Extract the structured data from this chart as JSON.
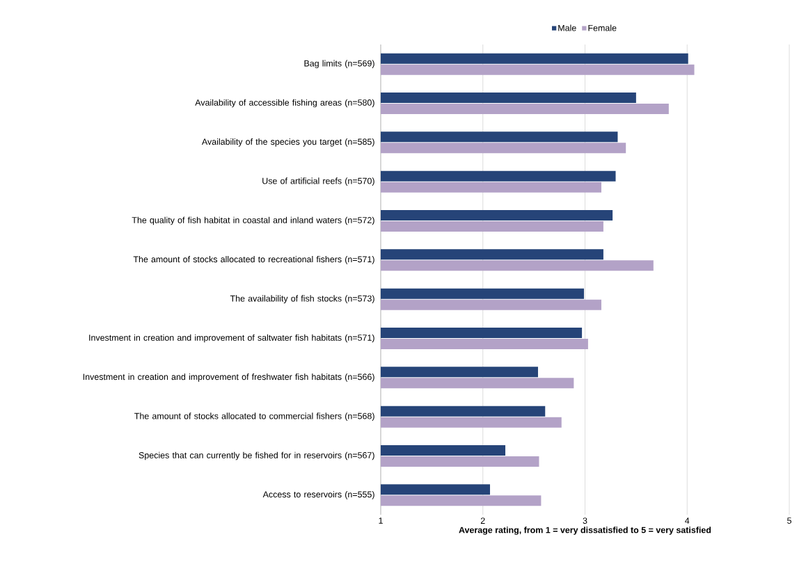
{
  "chart_data": {
    "type": "bar",
    "orientation": "horizontal",
    "xlabel": "Average rating, from 1 =  very dissatisfied to 5 = very satisfied",
    "categories": [
      "Bag limits (n=569)",
      "Availability of accessible fishing areas (n=580)",
      "Availability of the species you target (n=585)",
      "Use of artificial reefs (n=570)",
      "The quality of fish habitat in coastal and inland waters (n=572)",
      "The amount of stocks allocated to recreational fishers (n=571)",
      "The availability of fish stocks (n=573)",
      "Investment in creation and improvement of saltwater fish habitats (n=571)",
      "Investment in creation and improvement of freshwater fish habitats (n=566)",
      "The amount of stocks allocated to commercial fishers (n=568)",
      "Species that can currently be fished for in reservoirs (n=567)",
      "Access to reservoirs (n=555)"
    ],
    "series": [
      {
        "name": "Male",
        "color": "#264478",
        "values": [
          4.01,
          3.5,
          3.32,
          3.3,
          3.27,
          3.18,
          2.99,
          2.97,
          2.54,
          2.61,
          2.22,
          2.07
        ]
      },
      {
        "name": "Female",
        "color": "#b3a2c7",
        "values": [
          4.07,
          3.82,
          3.4,
          3.16,
          3.18,
          3.67,
          3.16,
          3.03,
          2.89,
          2.77,
          2.55,
          2.57
        ]
      }
    ],
    "xlim": [
      1,
      5
    ],
    "xticks": [
      1,
      2,
      3,
      4,
      5
    ],
    "grid": "x",
    "legend": "top"
  }
}
